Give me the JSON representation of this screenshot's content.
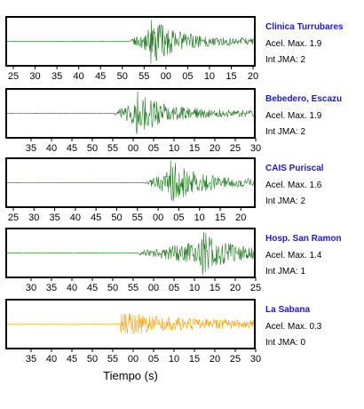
{
  "chart_data": {
    "type": "line",
    "xlabel": "Tiempo (s)",
    "panels": [
      {
        "station": "Clinica Turrubares",
        "accel_label": "Acel. Max. 1.9",
        "jma_label": "Int JMA: 2",
        "color": "#1f7a1f",
        "tick_labels": [
          "25",
          "30",
          "35",
          "40",
          "45",
          "50",
          "55",
          "00",
          "05",
          "10",
          "15",
          "20"
        ],
        "onset_s": 25,
        "peak_s": 29,
        "xlim": [
          0,
          50
        ]
      },
      {
        "station": "Bebedero, Escazu",
        "accel_label": "Acel. Max. 1.9",
        "jma_label": "Int JMA: 2",
        "color": "#1f7a1f",
        "tick_labels": [
          "35",
          "40",
          "45",
          "50",
          "55",
          "00",
          "05",
          "10",
          "15",
          "20",
          "25",
          "30"
        ],
        "onset_s": 21,
        "peak_s": 25,
        "xlim": [
          0,
          48
        ]
      },
      {
        "station": "CAIS Puriscal",
        "accel_label": "Acel. Max. 1.6",
        "jma_label": "Int JMA: 2",
        "color": "#1f7a1f",
        "tick_labels": [
          "25",
          "30",
          "35",
          "40",
          "45",
          "50",
          "55",
          "00",
          "05",
          "10",
          "15",
          "20",
          "25",
          "30"
        ],
        "onset_s": 28,
        "peak_s": 33,
        "xlim": [
          0,
          50
        ]
      },
      {
        "station": "Hosp. San Ramon",
        "accel_label": "Acel. Max. 1.4",
        "jma_label": "Int JMA: 1",
        "color": "#1f7a1f",
        "tick_labels": [
          "30",
          "35",
          "40",
          "45",
          "50",
          "55",
          "00",
          "05",
          "10",
          "15",
          "20",
          "25"
        ],
        "onset_s": 25,
        "peak_s": 37,
        "xlim": [
          0,
          47
        ]
      },
      {
        "station": "La Sabana",
        "accel_label": "Acel. Max. 0.3",
        "jma_label": "Int JMA: 0",
        "color": "#f5a20a",
        "tick_labels": [
          "35",
          "40",
          "45",
          "50",
          "55",
          "00",
          "05",
          "10",
          "15",
          "20",
          "25",
          "30"
        ],
        "onset_s": 22,
        "peak_s": 22,
        "xlim": [
          0,
          48
        ]
      }
    ]
  }
}
